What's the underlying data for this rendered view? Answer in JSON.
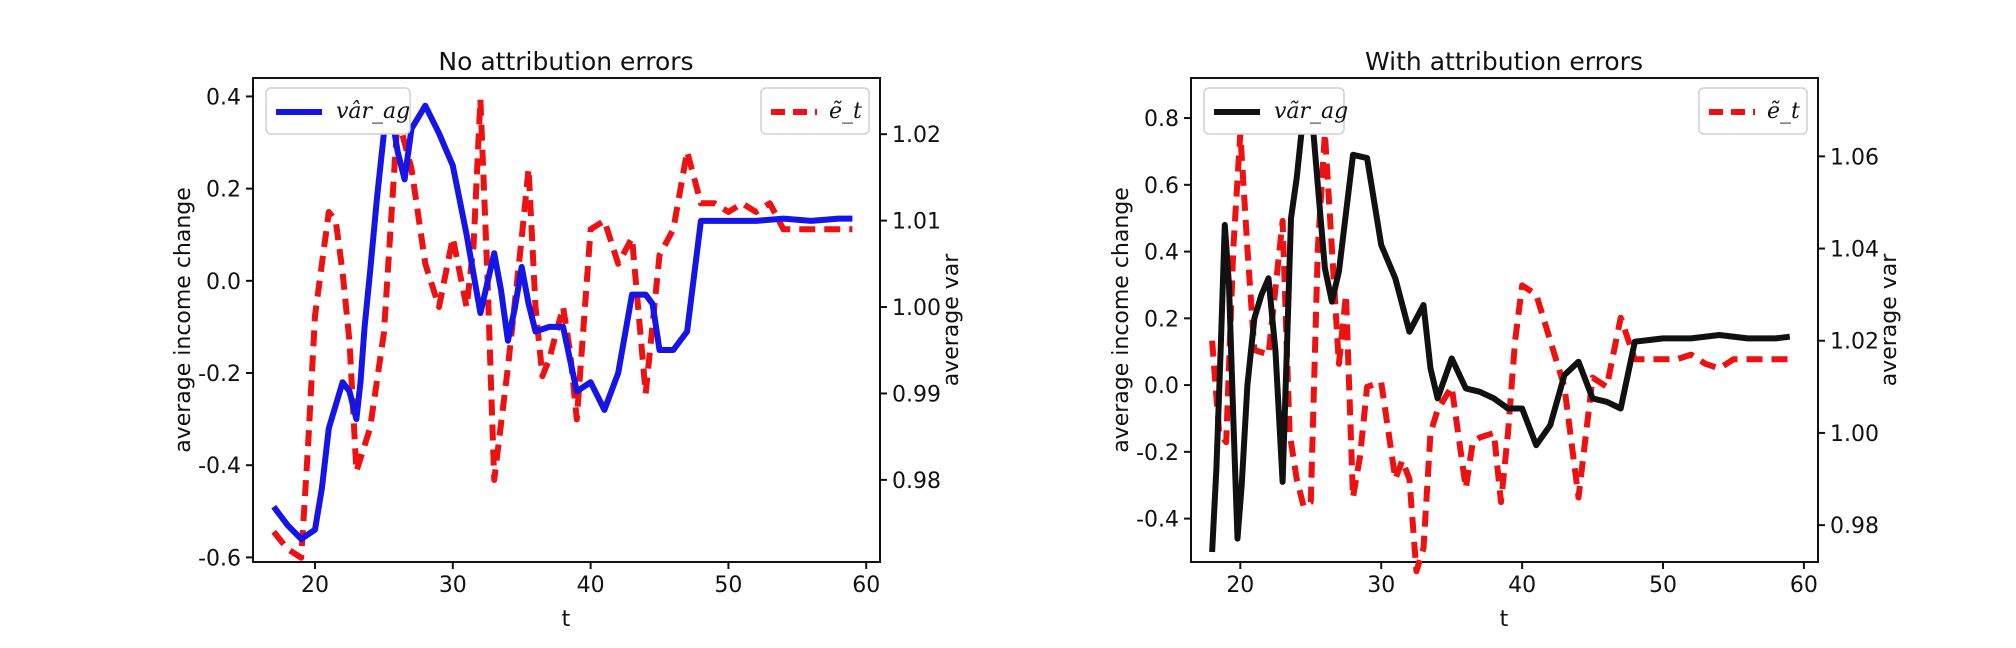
{
  "chart_data": [
    {
      "type": "line",
      "title": "No attribution errors",
      "xlabel": "t",
      "ylabel": "average income change",
      "y2label": "average var",
      "xlim": [
        15.5,
        61
      ],
      "ylim": [
        -0.61,
        0.44
      ],
      "y2lim": [
        0.9705,
        1.0265
      ],
      "x_ticks": [
        20,
        30,
        40,
        50,
        60
      ],
      "y_ticks": [
        -0.6,
        -0.4,
        -0.2,
        0.0,
        0.2,
        0.4
      ],
      "y_tick_labels": [
        "-0.6",
        "-0.4",
        "-0.2",
        "0.0",
        "0.2",
        "0.4"
      ],
      "y2_ticks": [
        0.98,
        0.99,
        1.0,
        1.01,
        1.02
      ],
      "y2_tick_labels": [
        "0.98",
        "0.99",
        "1.00",
        "1.01",
        "1.02"
      ],
      "legend": [
        {
          "position": "top-left",
          "label": "vâr_ag"
        },
        {
          "position": "top-right",
          "label": "ẽ_t"
        }
      ],
      "series": [
        {
          "name": "vâr_ag",
          "axis": "left",
          "color": "#1515e8",
          "style": "solid",
          "x": [
            17,
            18,
            19,
            20,
            20.5,
            21,
            22,
            22.5,
            23,
            23.3,
            23.6,
            24,
            24.5,
            25,
            25.5,
            26,
            26.5,
            27,
            28,
            29,
            30,
            31,
            32,
            33,
            33.5,
            34,
            34.5,
            35,
            35.5,
            36,
            37,
            38,
            38.5,
            39,
            40,
            41,
            42,
            43,
            44,
            44.5,
            45,
            46,
            47,
            48,
            50,
            52,
            54,
            56,
            58,
            59
          ],
          "y": [
            -0.49,
            -0.53,
            -0.56,
            -0.54,
            -0.45,
            -0.32,
            -0.22,
            -0.24,
            -0.3,
            -0.22,
            -0.1,
            0.02,
            0.18,
            0.32,
            0.37,
            0.28,
            0.22,
            0.33,
            0.38,
            0.32,
            0.25,
            0.1,
            -0.07,
            0.06,
            -0.02,
            -0.13,
            -0.06,
            0.03,
            -0.05,
            -0.11,
            -0.1,
            -0.1,
            -0.17,
            -0.24,
            -0.22,
            -0.28,
            -0.2,
            -0.03,
            -0.03,
            -0.05,
            -0.15,
            -0.15,
            -0.11,
            0.13,
            0.13,
            0.13,
            0.135,
            0.13,
            0.135,
            0.135
          ]
        },
        {
          "name": "ẽ_t",
          "axis": "right",
          "color": "#ee1111",
          "style": "dashed",
          "x": [
            17,
            18,
            19,
            19.5,
            20,
            21,
            21.5,
            22,
            22.5,
            23,
            24,
            25,
            26,
            27,
            28,
            29,
            30,
            31,
            31.5,
            32,
            32.5,
            33,
            34,
            35,
            35.5,
            36,
            36.5,
            37,
            38,
            38.5,
            39,
            40,
            41,
            42,
            43,
            44,
            45,
            46,
            47,
            48,
            49,
            50,
            51,
            52,
            53,
            54,
            55,
            56,
            57,
            58,
            59
          ],
          "y": [
            0.974,
            0.972,
            0.971,
            0.984,
            0.999,
            1.011,
            1.01,
            1.004,
            0.996,
            0.981,
            0.986,
            0.997,
            1.022,
            1.016,
            1.005,
            1,
            1.008,
            1,
            1.007,
            1.024,
            1.004,
            0.98,
            0.993,
            1.008,
            1.016,
            1,
            0.992,
            0.994,
            1,
            0.995,
            0.987,
            1.009,
            1.01,
            1.005,
            1.008,
            0.99,
            1.006,
            1.009,
            1.018,
            1.012,
            1.012,
            1.011,
            1.012,
            1.011,
            1.012,
            1.009,
            1.009,
            1.009,
            1.009,
            1.009,
            1.009
          ]
        }
      ]
    },
    {
      "type": "line",
      "title": "With attribution errors",
      "xlabel": "t",
      "ylabel": "average income change",
      "y2label": "average var",
      "xlim": [
        16.5,
        61
      ],
      "ylim": [
        -0.53,
        0.92
      ],
      "y2lim": [
        0.972,
        1.077
      ],
      "x_ticks": [
        20,
        30,
        40,
        50,
        60
      ],
      "y_ticks": [
        -0.4,
        -0.2,
        0.0,
        0.2,
        0.4,
        0.6,
        0.8
      ],
      "y_tick_labels": [
        "-0.4",
        "-0.2",
        "0.0",
        "0.2",
        "0.4",
        "0.6",
        "0.8"
      ],
      "y2_ticks": [
        0.98,
        1.0,
        1.02,
        1.04,
        1.06
      ],
      "y2_tick_labels": [
        "0.98",
        "1.00",
        "1.02",
        "1.04",
        "1.06"
      ],
      "legend": [
        {
          "position": "top-left",
          "label": "vãr_ag"
        },
        {
          "position": "top-right",
          "label": "ẽ_t"
        }
      ],
      "series": [
        {
          "name": "vãr_ag",
          "axis": "left",
          "color": "#111111",
          "style": "solid",
          "x": [
            18,
            18.3,
            18.6,
            18.9,
            19.2,
            19.5,
            19.8,
            20.1,
            20.5,
            21,
            21.5,
            22,
            22.5,
            23,
            23.3,
            23.6,
            24,
            24.4,
            24.8,
            25.2,
            25.6,
            26,
            26.5,
            27,
            28,
            29,
            30,
            31,
            32,
            33,
            33.5,
            34,
            35,
            36,
            37,
            38,
            39,
            40,
            41,
            42,
            43,
            44,
            45,
            46,
            47,
            48,
            50,
            52,
            54,
            56,
            58,
            59
          ],
          "y": [
            -0.5,
            -0.25,
            0.1,
            0.48,
            0.3,
            -0.1,
            -0.46,
            -0.3,
            0.0,
            0.2,
            0.27,
            0.32,
            0.1,
            -0.29,
            0.1,
            0.5,
            0.62,
            0.78,
            0.84,
            0.75,
            0.55,
            0.35,
            0.25,
            0.34,
            0.69,
            0.68,
            0.42,
            0.32,
            0.16,
            0.24,
            0.05,
            -0.04,
            0.08,
            -0.01,
            -0.02,
            -0.04,
            -0.07,
            -0.07,
            -0.18,
            -0.12,
            0.03,
            0.07,
            -0.04,
            -0.05,
            -0.07,
            0.13,
            0.14,
            0.14,
            0.15,
            0.14,
            0.14,
            0.145
          ]
        },
        {
          "name": "ẽ_t",
          "axis": "right",
          "color": "#ee1111",
          "style": "dashed",
          "x": [
            18,
            18.5,
            19,
            19.5,
            20,
            20.5,
            21,
            22,
            23,
            23.5,
            24,
            24.5,
            25,
            25.5,
            26,
            26.5,
            27,
            27.5,
            28,
            28.5,
            29,
            30,
            31,
            31.5,
            32,
            32.5,
            33,
            33.5,
            34,
            35,
            36,
            36.5,
            37,
            38,
            38.5,
            39,
            39.5,
            40,
            41,
            42,
            43,
            44,
            45,
            46,
            47,
            48,
            49,
            50,
            51,
            52,
            53,
            54,
            55,
            56,
            57,
            58,
            59
          ],
          "y": [
            1.02,
            1.0,
            0.998,
            1.04,
            1.065,
            1.04,
            1.018,
            1.017,
            1.046,
            1.0,
            0.99,
            0.984,
            0.985,
            1.04,
            1.065,
            1.04,
            1.015,
            1.03,
            0.986,
            0.995,
            1.01,
            1.011,
            0.99,
            0.994,
            0.99,
            0.97,
            0.975,
            1.0,
            1.005,
            1.01,
            0.988,
            0.998,
            0.999,
            1.0,
            0.985,
            1.0,
            1.02,
            1.032,
            1.03,
            1.02,
            1.01,
            0.986,
            1.012,
            1.01,
            1.025,
            1.016,
            1.016,
            1.016,
            1.016,
            1.017,
            1.015,
            1.014,
            1.016,
            1.016,
            1.016,
            1.016,
            1.016
          ]
        }
      ]
    }
  ]
}
